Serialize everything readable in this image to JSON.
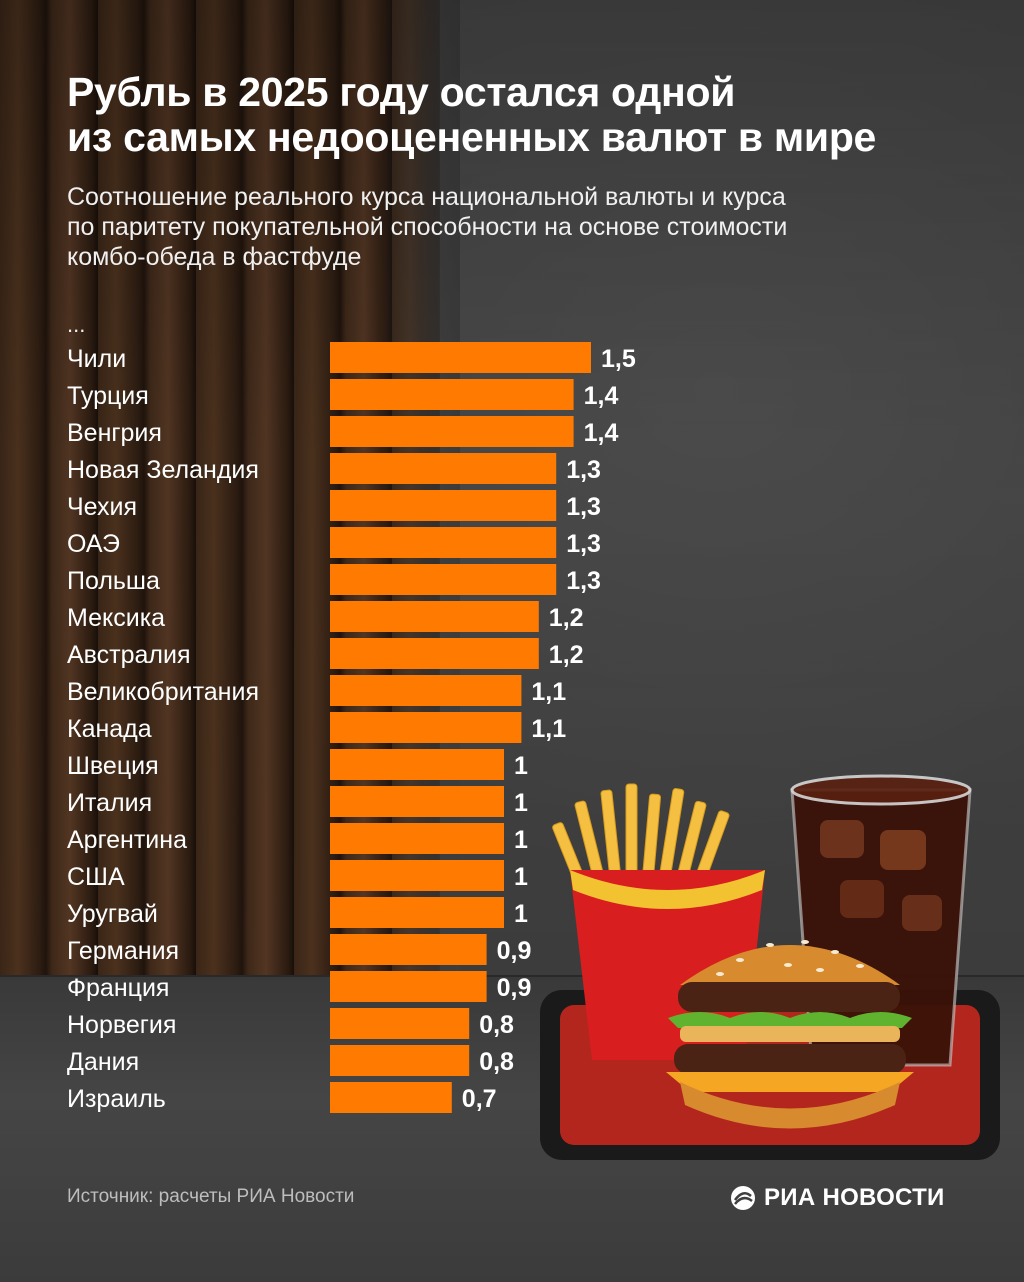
{
  "header": {
    "title_line1": "Рубль в 2025 году остался одной",
    "title_line2": "из самых недооцененных валют в мире",
    "subtitle_line1": "Соотношение реального курса национальной валюты и курса",
    "subtitle_line2": "по паритету покупательной способности на основе стоимости",
    "subtitle_line3": "комбо-обеда в фастфуде",
    "ellipsis": "..."
  },
  "chart_data": {
    "type": "bar",
    "orientation": "horizontal",
    "categories": [
      "Чили",
      "Турция",
      "Венгрия",
      "Новая Зеландия",
      "Чехия",
      "ОАЭ",
      "Польша",
      "Мексика",
      "Австралия",
      "Великобритания",
      "Канада",
      "Швеция",
      "Италия",
      "Аргентина",
      "США",
      "Уругвай",
      "Германия",
      "Франция",
      "Норвегия",
      "Дания",
      "Израиль"
    ],
    "values": [
      1.5,
      1.4,
      1.4,
      1.3,
      1.3,
      1.3,
      1.3,
      1.2,
      1.2,
      1.1,
      1.1,
      1.0,
      1.0,
      1.0,
      1.0,
      1.0,
      0.9,
      0.9,
      0.8,
      0.8,
      0.7
    ],
    "value_labels": [
      "1,5",
      "1,4",
      "1,4",
      "1,3",
      "1,3",
      "1,3",
      "1,3",
      "1,2",
      "1,2",
      "1,1",
      "1,1",
      "1",
      "1",
      "1",
      "1",
      "1",
      "0,9",
      "0,9",
      "0,8",
      "0,8",
      "0,7"
    ],
    "bar_color": "#ff7a00",
    "grid": false,
    "legend": "none"
  },
  "footer": {
    "source": "Источник: расчеты РИА Новости",
    "logo_text": "РИА НОВОСТИ"
  },
  "icons": {
    "logo": "ria-novosti-logo-icon",
    "illustration": "fastfood-combo-illustration"
  }
}
